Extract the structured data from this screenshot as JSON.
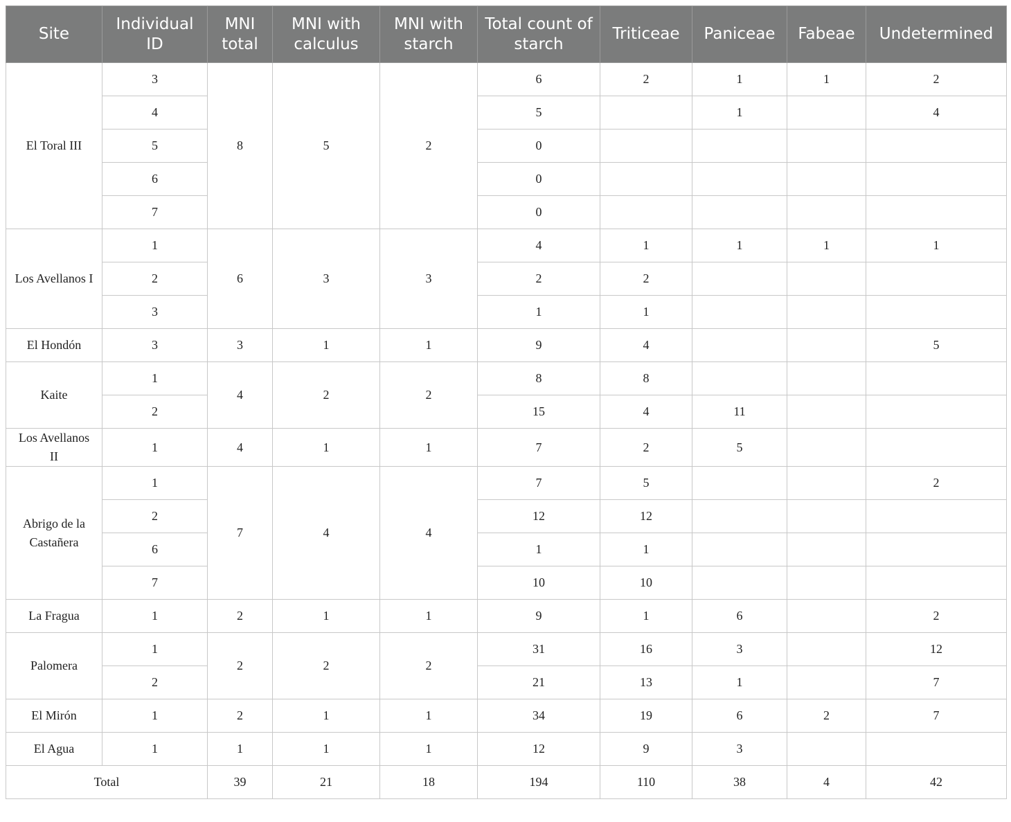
{
  "headers": [
    "Site",
    "Individual ID",
    "MNI total",
    "MNI with calculus",
    "MNI with starch",
    "Total count of starch",
    "Triticeae",
    "Paniceae",
    "Fabeae",
    "Undetermined"
  ],
  "sites": [
    {
      "name": "El Toral III",
      "mni_total": "8",
      "mni_calculus": "5",
      "mni_starch": "2",
      "individuals": [
        {
          "id": "3",
          "total": "6",
          "triticeae": "2",
          "paniceae": "1",
          "fabeae": "1",
          "undetermined": "2"
        },
        {
          "id": "4",
          "total": "5",
          "triticeae": "",
          "paniceae": "1",
          "fabeae": "",
          "undetermined": "4"
        },
        {
          "id": "5",
          "total": "0",
          "triticeae": "",
          "paniceae": "",
          "fabeae": "",
          "undetermined": ""
        },
        {
          "id": "6",
          "total": "0",
          "triticeae": "",
          "paniceae": "",
          "fabeae": "",
          "undetermined": ""
        },
        {
          "id": "7",
          "total": "0",
          "triticeae": "",
          "paniceae": "",
          "fabeae": "",
          "undetermined": ""
        }
      ]
    },
    {
      "name": "Los Avellanos I",
      "mni_total": "6",
      "mni_calculus": "3",
      "mni_starch": "3",
      "individuals": [
        {
          "id": "1",
          "total": "4",
          "triticeae": "1",
          "paniceae": "1",
          "fabeae": "1",
          "undetermined": "1"
        },
        {
          "id": "2",
          "total": "2",
          "triticeae": "2",
          "paniceae": "",
          "fabeae": "",
          "undetermined": ""
        },
        {
          "id": "3",
          "total": "1",
          "triticeae": "1",
          "paniceae": "",
          "fabeae": "",
          "undetermined": ""
        }
      ]
    },
    {
      "name": "El Hondón",
      "mni_total": "3",
      "mni_calculus": "1",
      "mni_starch": "1",
      "individuals": [
        {
          "id": "3",
          "total": "9",
          "triticeae": "4",
          "paniceae": "",
          "fabeae": "",
          "undetermined": "5"
        }
      ]
    },
    {
      "name": "Kaite",
      "mni_total": "4",
      "mni_calculus": "2",
      "mni_starch": "2",
      "individuals": [
        {
          "id": "1",
          "total": "8",
          "triticeae": "8",
          "paniceae": "",
          "fabeae": "",
          "undetermined": ""
        },
        {
          "id": "2",
          "total": "15",
          "triticeae": "4",
          "paniceae": "11",
          "fabeae": "",
          "undetermined": ""
        }
      ]
    },
    {
      "name": "Los Avellanos II",
      "mni_total": "4",
      "mni_calculus": "1",
      "mni_starch": "1",
      "individuals": [
        {
          "id": "1",
          "total": "7",
          "triticeae": "2",
          "paniceae": "5",
          "fabeae": "",
          "undetermined": ""
        }
      ]
    },
    {
      "name": "Abrigo de la Castañera",
      "mni_total": "7",
      "mni_calculus": "4",
      "mni_starch": "4",
      "individuals": [
        {
          "id": "1",
          "total": "7",
          "triticeae": "5",
          "paniceae": "",
          "fabeae": "",
          "undetermined": "2"
        },
        {
          "id": "2",
          "total": "12",
          "triticeae": "12",
          "paniceae": "",
          "fabeae": "",
          "undetermined": ""
        },
        {
          "id": "6",
          "total": "1",
          "triticeae": "1",
          "paniceae": "",
          "fabeae": "",
          "undetermined": ""
        },
        {
          "id": "7",
          "total": "10",
          "triticeae": "10",
          "paniceae": "",
          "fabeae": "",
          "undetermined": ""
        }
      ]
    },
    {
      "name": "La Fragua",
      "mni_total": "2",
      "mni_calculus": "1",
      "mni_starch": "1",
      "individuals": [
        {
          "id": "1",
          "total": "9",
          "triticeae": "1",
          "paniceae": "6",
          "fabeae": "",
          "undetermined": "2"
        }
      ]
    },
    {
      "name": "Palomera",
      "mni_total": "2",
      "mni_calculus": "2",
      "mni_starch": "2",
      "individuals": [
        {
          "id": "1",
          "total": "31",
          "triticeae": "16",
          "paniceae": "3",
          "fabeae": "",
          "undetermined": "12"
        },
        {
          "id": "2",
          "total": "21",
          "triticeae": "13",
          "paniceae": "1",
          "fabeae": "",
          "undetermined": "7"
        }
      ]
    },
    {
      "name": "El Mirón",
      "mni_total": "2",
      "mni_calculus": "1",
      "mni_starch": "1",
      "individuals": [
        {
          "id": "1",
          "total": "34",
          "triticeae": "19",
          "paniceae": "6",
          "fabeae": "2",
          "undetermined": "7"
        }
      ]
    },
    {
      "name": "El Agua",
      "mni_total": "1",
      "mni_calculus": "1",
      "mni_starch": "1",
      "individuals": [
        {
          "id": "1",
          "total": "12",
          "triticeae": "9",
          "paniceae": "3",
          "fabeae": "",
          "undetermined": ""
        }
      ]
    }
  ],
  "total": {
    "label": "Total",
    "mni_total": "39",
    "mni_calculus": "21",
    "mni_starch": "18",
    "total": "194",
    "triticeae": "110",
    "paniceae": "38",
    "fabeae": "4",
    "undetermined": "42"
  },
  "colors": {
    "header_bg": "#7b7c7c",
    "header_text": "#ffffff",
    "grid": "#c8c8c8"
  }
}
